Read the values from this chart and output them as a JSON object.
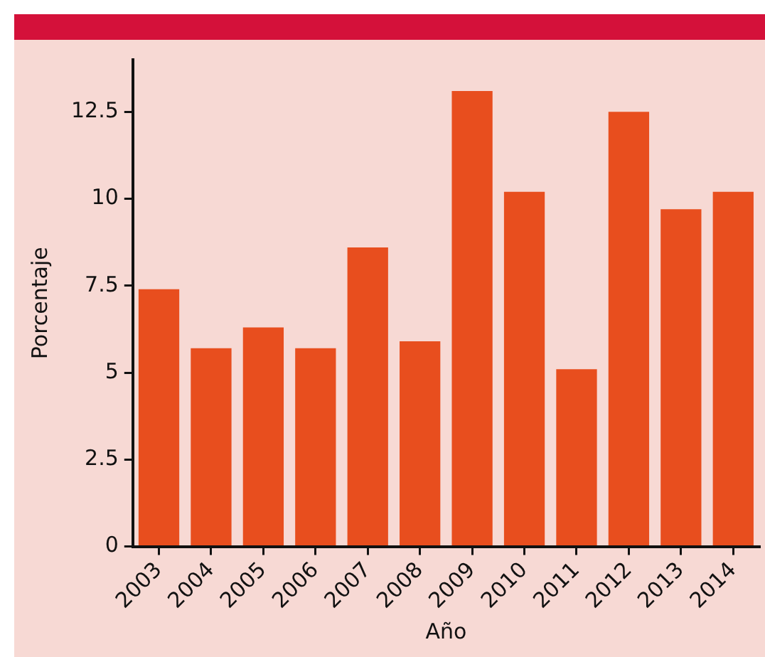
{
  "chart_data": {
    "type": "bar",
    "xlabel": "Año",
    "ylabel": "Porcentaje",
    "categories": [
      "2003",
      "2004",
      "2005",
      "2006",
      "2007",
      "2008",
      "2009",
      "2010",
      "2011",
      "2012",
      "2013",
      "2014"
    ],
    "values": [
      7.4,
      5.7,
      6.3,
      5.7,
      8.6,
      5.9,
      13.1,
      10.2,
      5.1,
      12.5,
      9.7,
      10.2
    ],
    "color": "#e84e1e",
    "ylim": [
      0,
      14
    ],
    "yticks": [
      0,
      {
        "value": 2.5,
        "label": "2.5"
      },
      5,
      {
        "value": 7.5,
        "label": "7.5"
      },
      10,
      {
        "value": 12.5,
        "label": "12.5"
      }
    ],
    "grid": false,
    "legend": false
  }
}
